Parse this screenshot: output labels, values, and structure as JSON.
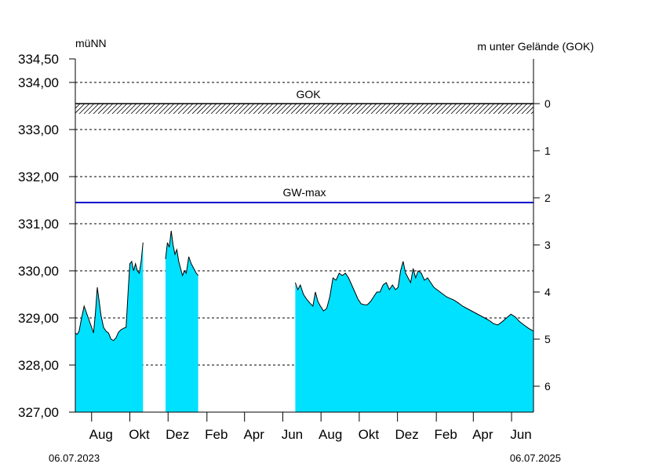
{
  "chart_data": {
    "type": "area",
    "ylabel_left": "müNN",
    "ylabel_right": "m unter Gelände (GOK)",
    "ylim": [
      327.0,
      334.5
    ],
    "yticks": [
      "327,00",
      "328,00",
      "329,00",
      "330,00",
      "331,00",
      "332,00",
      "333,00",
      "334,00",
      "334,50"
    ],
    "right_ticks": [
      "0",
      "1",
      "2",
      "3",
      "4",
      "5",
      "6"
    ],
    "gok_value": 333.55,
    "gok_label": "GOK",
    "gwmax_value": 331.45,
    "gwmax_label": "GW-max",
    "x_start_label": "06.07.2023",
    "x_end_label": "06.07.2025",
    "month_ticks": [
      {
        "label": "Aug",
        "date": "2023-08-01"
      },
      {
        "label": "Okt",
        "date": "2023-10-01"
      },
      {
        "label": "Dez",
        "date": "2023-12-01"
      },
      {
        "label": "Feb",
        "date": "2024-02-01"
      },
      {
        "label": "Apr",
        "date": "2024-04-01"
      },
      {
        "label": "Jun",
        "date": "2024-06-01"
      },
      {
        "label": "Aug",
        "date": "2024-08-01"
      },
      {
        "label": "Okt",
        "date": "2024-10-01"
      },
      {
        "label": "Dez",
        "date": "2024-12-01"
      },
      {
        "label": "Feb",
        "date": "2025-02-01"
      },
      {
        "label": "Apr",
        "date": "2025-04-01"
      },
      {
        "label": "Jun",
        "date": "2025-06-01"
      }
    ],
    "series": [
      {
        "segment": 1,
        "points": [
          [
            "2023-07-06",
            328.68
          ],
          [
            "2023-07-09",
            328.65
          ],
          [
            "2023-07-12",
            328.72
          ],
          [
            "2023-07-16",
            329.0
          ],
          [
            "2023-07-20",
            329.25
          ],
          [
            "2023-07-24",
            329.1
          ],
          [
            "2023-07-28",
            328.95
          ],
          [
            "2023-08-01",
            328.8
          ],
          [
            "2023-08-04",
            328.68
          ],
          [
            "2023-08-07",
            329.1
          ],
          [
            "2023-08-10",
            329.65
          ],
          [
            "2023-08-13",
            329.35
          ],
          [
            "2023-08-16",
            329.05
          ],
          [
            "2023-08-20",
            328.8
          ],
          [
            "2023-08-24",
            328.72
          ],
          [
            "2023-08-28",
            328.68
          ],
          [
            "2023-09-01",
            328.55
          ],
          [
            "2023-09-05",
            328.52
          ],
          [
            "2023-09-09",
            328.58
          ],
          [
            "2023-09-13",
            328.7
          ],
          [
            "2023-09-17",
            328.75
          ],
          [
            "2023-09-21",
            328.78
          ],
          [
            "2023-09-25",
            328.8
          ],
          [
            "2023-09-28",
            329.5
          ],
          [
            "2023-10-01",
            330.15
          ],
          [
            "2023-10-04",
            330.2
          ],
          [
            "2023-10-07",
            330.0
          ],
          [
            "2023-10-10",
            330.15
          ],
          [
            "2023-10-13",
            330.0
          ],
          [
            "2023-10-16",
            329.95
          ],
          [
            "2023-10-19",
            330.2
          ],
          [
            "2023-10-22",
            330.6
          ]
        ]
      },
      {
        "segment": 2,
        "points": [
          [
            "2023-11-27",
            330.25
          ],
          [
            "2023-11-30",
            330.6
          ],
          [
            "2023-12-03",
            330.5
          ],
          [
            "2023-12-06",
            330.85
          ],
          [
            "2023-12-09",
            330.55
          ],
          [
            "2023-12-12",
            330.35
          ],
          [
            "2023-12-15",
            330.45
          ],
          [
            "2023-12-18",
            330.2
          ],
          [
            "2023-12-21",
            330.05
          ],
          [
            "2023-12-24",
            329.9
          ],
          [
            "2023-12-27",
            330.0
          ],
          [
            "2023-12-30",
            329.95
          ],
          [
            "2024-01-03",
            330.3
          ],
          [
            "2024-01-07",
            330.15
          ],
          [
            "2024-01-11",
            330.05
          ],
          [
            "2024-01-15",
            329.95
          ],
          [
            "2024-01-18",
            329.9
          ]
        ]
      },
      {
        "segment": 3,
        "points": [
          [
            "2024-06-21",
            329.75
          ],
          [
            "2024-06-25",
            329.6
          ],
          [
            "2024-06-29",
            329.7
          ],
          [
            "2024-07-04",
            329.5
          ],
          [
            "2024-07-09",
            329.4
          ],
          [
            "2024-07-14",
            329.32
          ],
          [
            "2024-07-19",
            329.25
          ],
          [
            "2024-07-23",
            329.55
          ],
          [
            "2024-07-27",
            329.35
          ],
          [
            "2024-07-31",
            329.25
          ],
          [
            "2024-08-05",
            329.15
          ],
          [
            "2024-08-10",
            329.2
          ],
          [
            "2024-08-15",
            329.45
          ],
          [
            "2024-08-20",
            329.85
          ],
          [
            "2024-08-25",
            329.8
          ],
          [
            "2024-08-30",
            329.95
          ],
          [
            "2024-09-04",
            329.9
          ],
          [
            "2024-09-09",
            329.95
          ],
          [
            "2024-09-14",
            329.85
          ],
          [
            "2024-09-19",
            329.7
          ],
          [
            "2024-09-24",
            329.55
          ],
          [
            "2024-09-29",
            329.4
          ],
          [
            "2024-10-04",
            329.3
          ],
          [
            "2024-10-09",
            329.28
          ],
          [
            "2024-10-14",
            329.28
          ],
          [
            "2024-10-19",
            329.35
          ],
          [
            "2024-10-24",
            329.45
          ],
          [
            "2024-10-29",
            329.55
          ],
          [
            "2024-11-03",
            329.55
          ],
          [
            "2024-11-08",
            329.7
          ],
          [
            "2024-11-13",
            329.75
          ],
          [
            "2024-11-18",
            329.6
          ],
          [
            "2024-11-23",
            329.7
          ],
          [
            "2024-11-28",
            329.6
          ],
          [
            "2024-12-02",
            329.65
          ],
          [
            "2024-12-06",
            330.0
          ],
          [
            "2024-12-10",
            330.2
          ],
          [
            "2024-12-14",
            329.95
          ],
          [
            "2024-12-18",
            329.85
          ],
          [
            "2024-12-22",
            329.75
          ],
          [
            "2024-12-26",
            330.05
          ],
          [
            "2024-12-30",
            329.85
          ],
          [
            "2025-01-03",
            330.0
          ],
          [
            "2025-01-08",
            329.95
          ],
          [
            "2025-01-13",
            329.8
          ],
          [
            "2025-01-18",
            329.85
          ],
          [
            "2025-01-23",
            329.75
          ],
          [
            "2025-01-28",
            329.65
          ],
          [
            "2025-02-02",
            329.6
          ],
          [
            "2025-02-07",
            329.55
          ],
          [
            "2025-02-12",
            329.5
          ],
          [
            "2025-02-17",
            329.45
          ],
          [
            "2025-02-22",
            329.42
          ],
          [
            "2025-03-01",
            329.38
          ],
          [
            "2025-03-08",
            329.32
          ],
          [
            "2025-03-15",
            329.25
          ],
          [
            "2025-03-22",
            329.2
          ],
          [
            "2025-03-29",
            329.15
          ],
          [
            "2025-04-05",
            329.1
          ],
          [
            "2025-04-12",
            329.05
          ],
          [
            "2025-04-19",
            329.0
          ],
          [
            "2025-04-26",
            328.95
          ],
          [
            "2025-05-03",
            328.88
          ],
          [
            "2025-05-10",
            328.85
          ],
          [
            "2025-05-17",
            328.92
          ],
          [
            "2025-05-24",
            329.0
          ],
          [
            "2025-05-31",
            329.08
          ],
          [
            "2025-06-07",
            329.02
          ],
          [
            "2025-06-14",
            328.92
          ],
          [
            "2025-06-21",
            328.85
          ],
          [
            "2025-06-28",
            328.78
          ],
          [
            "2025-07-06",
            328.72
          ]
        ]
      }
    ]
  }
}
